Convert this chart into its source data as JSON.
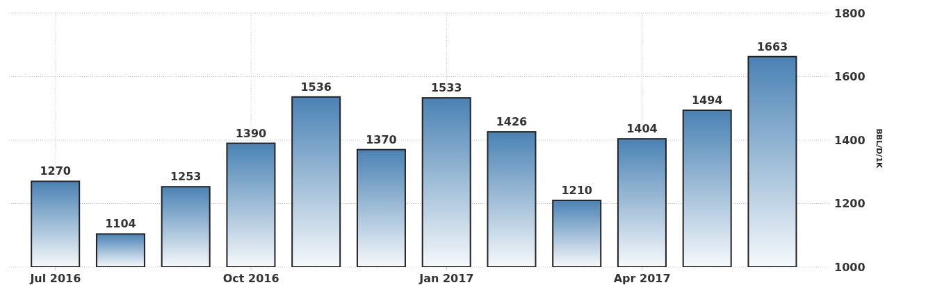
{
  "chart_data": {
    "type": "bar",
    "categories": [
      "Jul 2016",
      null,
      null,
      "Oct 2016",
      null,
      null,
      "Jan 2017",
      null,
      null,
      "Apr 2017",
      null,
      null
    ],
    "values": [
      1270,
      1104,
      1253,
      1390,
      1536,
      1370,
      1533,
      1426,
      1210,
      1404,
      1494,
      1663
    ],
    "color": "#4a82b4",
    "ylabel": "BBL/D/1K",
    "ylim": [
      1000,
      1800
    ],
    "yticks": [
      1000,
      1200,
      1400,
      1600,
      1800
    ],
    "grid": true,
    "data_labels": true
  }
}
